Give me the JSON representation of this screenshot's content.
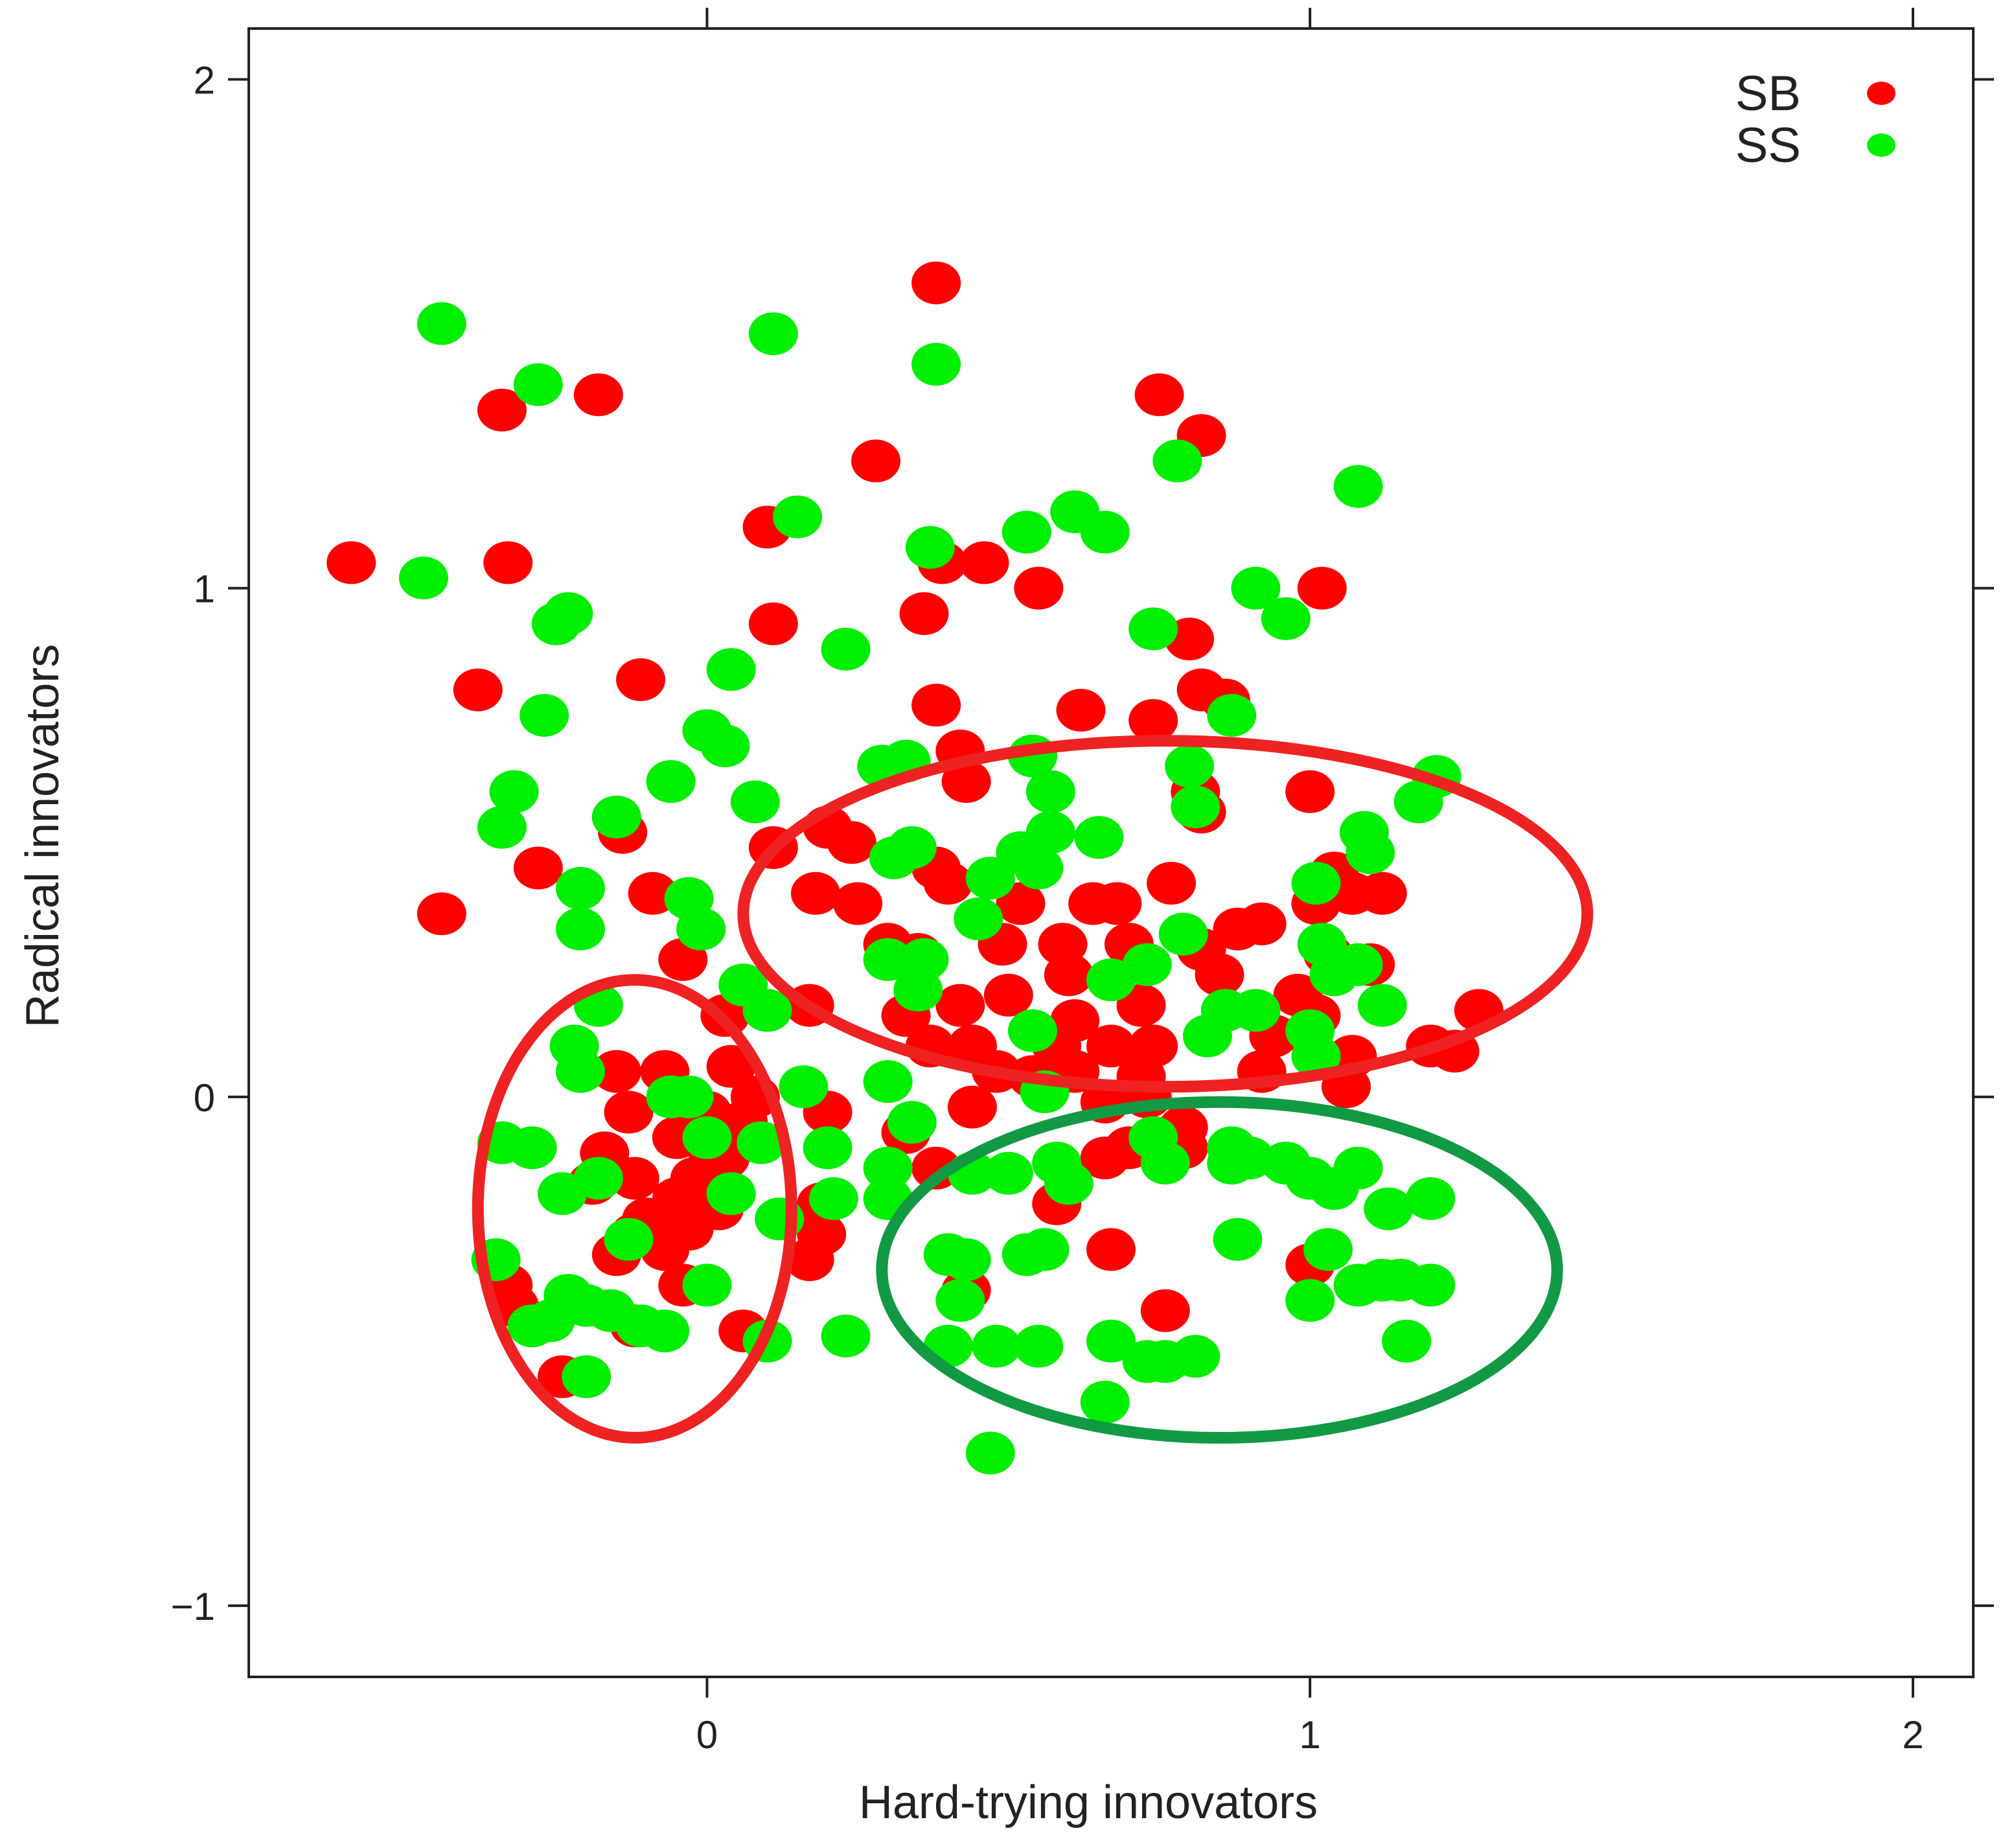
{
  "chart_data": {
    "type": "scatter",
    "xlabel": "Hard-trying innovators",
    "ylabel": "Radical innovators",
    "xlim": [
      -0.76,
      2.1
    ],
    "ylim": [
      -1.14,
      2.1
    ],
    "x_ticks": [
      0,
      1,
      2
    ],
    "x_tick_labels": [
      "0",
      "1",
      "2"
    ],
    "y_ticks": [
      -1,
      0,
      1,
      2
    ],
    "y_tick_labels": [
      "−1",
      "0",
      "1",
      "2"
    ],
    "grid": false,
    "legend_position": "top-right",
    "series": [
      {
        "name": "SB",
        "color": "#ff0000",
        "points": [
          [
            0.38,
            1.6
          ],
          [
            -0.18,
            1.38
          ],
          [
            -0.34,
            1.35
          ],
          [
            0.28,
            1.25
          ],
          [
            0.75,
            1.38
          ],
          [
            0.82,
            1.3
          ],
          [
            -0.59,
            1.05
          ],
          [
            -0.33,
            1.05
          ],
          [
            0.1,
            1.12
          ],
          [
            0.46,
            1.05
          ],
          [
            0.39,
            1.05
          ],
          [
            0.55,
            1.0
          ],
          [
            1.02,
            1.0
          ],
          [
            0.11,
            0.93
          ],
          [
            0.36,
            0.95
          ],
          [
            0.8,
            0.9
          ],
          [
            -0.38,
            0.8
          ],
          [
            -0.11,
            0.82
          ],
          [
            0.38,
            0.77
          ],
          [
            0.62,
            0.76
          ],
          [
            0.74,
            0.74
          ],
          [
            0.82,
            0.8
          ],
          [
            0.86,
            0.78
          ],
          [
            0.42,
            0.68
          ],
          [
            0.43,
            0.62
          ],
          [
            1.0,
            0.6
          ],
          [
            0.81,
            0.6
          ],
          [
            0.82,
            0.56
          ],
          [
            -0.15,
            0.55
          ],
          [
            -0.14,
            0.52
          ],
          [
            0.11,
            0.49
          ],
          [
            0.2,
            0.53
          ],
          [
            0.24,
            0.5
          ],
          [
            -0.28,
            0.45
          ],
          [
            -0.09,
            0.4
          ],
          [
            -0.44,
            0.36
          ],
          [
            0.18,
            0.4
          ],
          [
            0.25,
            0.38
          ],
          [
            0.38,
            0.45
          ],
          [
            0.4,
            0.42
          ],
          [
            0.52,
            0.38
          ],
          [
            0.64,
            0.38
          ],
          [
            0.68,
            0.38
          ],
          [
            0.77,
            0.42
          ],
          [
            0.88,
            0.33
          ],
          [
            0.92,
            0.34
          ],
          [
            1.01,
            0.38
          ],
          [
            1.07,
            0.4
          ],
          [
            1.12,
            0.4
          ],
          [
            1.04,
            0.44
          ],
          [
            0.3,
            0.3
          ],
          [
            0.35,
            0.28
          ],
          [
            0.49,
            0.3
          ],
          [
            0.59,
            0.3
          ],
          [
            0.7,
            0.3
          ],
          [
            0.82,
            0.29
          ],
          [
            0.6,
            0.24
          ],
          [
            0.85,
            0.24
          ],
          [
            1.03,
            0.28
          ],
          [
            1.1,
            0.26
          ],
          [
            -0.04,
            0.27
          ],
          [
            0.17,
            0.18
          ],
          [
            0.33,
            0.16
          ],
          [
            0.42,
            0.18
          ],
          [
            0.5,
            0.2
          ],
          [
            0.61,
            0.15
          ],
          [
            0.72,
            0.18
          ],
          [
            0.98,
            0.2
          ],
          [
            1.01,
            0.16
          ],
          [
            0.37,
            0.1
          ],
          [
            0.44,
            0.1
          ],
          [
            0.58,
            0.1
          ],
          [
            0.67,
            0.1
          ],
          [
            0.74,
            0.1
          ],
          [
            0.94,
            0.12
          ],
          [
            1.07,
            0.08
          ],
          [
            1.2,
            0.1
          ],
          [
            1.28,
            0.17
          ],
          [
            1.24,
            0.09
          ],
          [
            0.03,
            0.16
          ],
          [
            0.48,
            0.05
          ],
          [
            0.61,
            0.05
          ],
          [
            0.72,
            0.04
          ],
          [
            0.92,
            0.05
          ],
          [
            0.54,
            0.04
          ],
          [
            1.06,
            0.02
          ],
          [
            -0.15,
            0.05
          ],
          [
            -0.07,
            0.05
          ],
          [
            0.04,
            0.06
          ],
          [
            0.08,
            0.0
          ],
          [
            -0.13,
            -0.03
          ],
          [
            0.0,
            -0.03
          ],
          [
            -0.01,
            -0.06
          ],
          [
            0.06,
            -0.05
          ],
          [
            0.2,
            -0.03
          ],
          [
            0.33,
            -0.07
          ],
          [
            0.44,
            -0.02
          ],
          [
            0.66,
            -0.01
          ],
          [
            0.73,
            0.0
          ],
          [
            0.79,
            -0.06
          ],
          [
            -0.17,
            -0.11
          ],
          [
            -0.05,
            -0.08
          ],
          [
            0.01,
            -0.11
          ],
          [
            -0.19,
            -0.17
          ],
          [
            -0.12,
            -0.16
          ],
          [
            -0.02,
            -0.16
          ],
          [
            0.03,
            -0.12
          ],
          [
            0.7,
            -0.1
          ],
          [
            0.79,
            -0.1
          ],
          [
            0.66,
            -0.12
          ],
          [
            0.38,
            -0.14
          ],
          [
            -0.05,
            -0.2
          ],
          [
            -0.1,
            -0.24
          ],
          [
            0.02,
            -0.22
          ],
          [
            -0.03,
            -0.26
          ],
          [
            -0.12,
            -0.27
          ],
          [
            0.19,
            -0.21
          ],
          [
            0.58,
            -0.21
          ],
          [
            0.19,
            -0.27
          ],
          [
            -0.15,
            -0.31
          ],
          [
            -0.07,
            -0.3
          ],
          [
            0.17,
            -0.32
          ],
          [
            0.67,
            -0.3
          ],
          [
            1.0,
            -0.33
          ],
          [
            -0.33,
            -0.37
          ],
          [
            -0.04,
            -0.37
          ],
          [
            0.43,
            -0.38
          ],
          [
            0.76,
            -0.42
          ],
          [
            -0.32,
            -0.41
          ],
          [
            -0.12,
            -0.45
          ],
          [
            0.06,
            -0.46
          ],
          [
            -0.24,
            -0.55
          ]
        ]
      },
      {
        "name": "SS",
        "color": "#00ee00",
        "points": [
          [
            -0.44,
            1.52
          ],
          [
            0.11,
            1.5
          ],
          [
            0.38,
            1.44
          ],
          [
            -0.28,
            1.4
          ],
          [
            0.78,
            1.25
          ],
          [
            1.08,
            1.2
          ],
          [
            0.15,
            1.14
          ],
          [
            0.61,
            1.15
          ],
          [
            0.66,
            1.11
          ],
          [
            0.53,
            1.11
          ],
          [
            0.37,
            1.08
          ],
          [
            -0.47,
            1.02
          ],
          [
            0.91,
            1.0
          ],
          [
            0.96,
            0.94
          ],
          [
            -0.23,
            0.95
          ],
          [
            -0.25,
            0.93
          ],
          [
            0.23,
            0.88
          ],
          [
            0.74,
            0.92
          ],
          [
            0.04,
            0.84
          ],
          [
            -0.27,
            0.75
          ],
          [
            0.87,
            0.75
          ],
          [
            0.0,
            0.72
          ],
          [
            0.03,
            0.69
          ],
          [
            0.29,
            0.65
          ],
          [
            0.33,
            0.66
          ],
          [
            0.54,
            0.67
          ],
          [
            -0.06,
            0.62
          ],
          [
            -0.32,
            0.6
          ],
          [
            0.8,
            0.65
          ],
          [
            1.21,
            0.63
          ],
          [
            0.57,
            0.6
          ],
          [
            0.08,
            0.58
          ],
          [
            0.81,
            0.57
          ],
          [
            1.18,
            0.58
          ],
          [
            -0.34,
            0.53
          ],
          [
            -0.15,
            0.55
          ],
          [
            0.57,
            0.52
          ],
          [
            0.65,
            0.51
          ],
          [
            1.09,
            0.52
          ],
          [
            1.1,
            0.48
          ],
          [
            0.52,
            0.48
          ],
          [
            0.31,
            0.47
          ],
          [
            0.34,
            0.49
          ],
          [
            0.55,
            0.45
          ],
          [
            0.47,
            0.43
          ],
          [
            -0.21,
            0.41
          ],
          [
            -0.03,
            0.39
          ],
          [
            1.01,
            0.42
          ],
          [
            -0.21,
            0.33
          ],
          [
            -0.01,
            0.33
          ],
          [
            0.45,
            0.35
          ],
          [
            0.79,
            0.32
          ],
          [
            0.3,
            0.27
          ],
          [
            0.36,
            0.27
          ],
          [
            1.02,
            0.3
          ],
          [
            1.04,
            0.24
          ],
          [
            1.08,
            0.26
          ],
          [
            0.73,
            0.26
          ],
          [
            0.67,
            0.23
          ],
          [
            0.35,
            0.21
          ],
          [
            0.06,
            0.22
          ],
          [
            0.1,
            0.17
          ],
          [
            -0.18,
            0.18
          ],
          [
            0.86,
            0.17
          ],
          [
            0.91,
            0.17
          ],
          [
            1.12,
            0.18
          ],
          [
            0.54,
            0.13
          ],
          [
            0.83,
            0.12
          ],
          [
            1.0,
            0.13
          ],
          [
            1.01,
            0.08
          ],
          [
            -0.22,
            0.1
          ],
          [
            -0.21,
            0.05
          ],
          [
            0.3,
            0.03
          ],
          [
            0.16,
            0.02
          ],
          [
            0.56,
            0.01
          ],
          [
            -0.03,
            0.0
          ],
          [
            -0.06,
            0.0
          ],
          [
            0.34,
            -0.05
          ],
          [
            0.0,
            -0.08
          ],
          [
            0.09,
            -0.09
          ],
          [
            0.2,
            -0.1
          ],
          [
            -0.34,
            -0.09
          ],
          [
            -0.29,
            -0.1
          ],
          [
            0.74,
            -0.08
          ],
          [
            0.87,
            -0.1
          ],
          [
            0.3,
            -0.14
          ],
          [
            0.58,
            -0.13
          ],
          [
            0.44,
            -0.15
          ],
          [
            0.5,
            -0.15
          ],
          [
            0.76,
            -0.13
          ],
          [
            0.96,
            -0.13
          ],
          [
            0.9,
            -0.12
          ],
          [
            1.0,
            -0.16
          ],
          [
            1.04,
            -0.18
          ],
          [
            1.08,
            -0.14
          ],
          [
            -0.18,
            -0.16
          ],
          [
            -0.24,
            -0.19
          ],
          [
            0.04,
            -0.19
          ],
          [
            0.3,
            -0.2
          ],
          [
            0.21,
            -0.2
          ],
          [
            0.6,
            -0.17
          ],
          [
            0.87,
            -0.13
          ],
          [
            1.2,
            -0.2
          ],
          [
            1.13,
            -0.22
          ],
          [
            0.12,
            -0.24
          ],
          [
            -0.13,
            -0.28
          ],
          [
            0.4,
            -0.31
          ],
          [
            0.43,
            -0.32
          ],
          [
            0.56,
            -0.3
          ],
          [
            0.53,
            -0.31
          ],
          [
            0.88,
            -0.28
          ],
          [
            1.03,
            -0.3
          ],
          [
            1.08,
            -0.37
          ],
          [
            1.12,
            -0.36
          ],
          [
            1.15,
            -0.36
          ],
          [
            1.2,
            -0.37
          ],
          [
            -0.35,
            -0.32
          ],
          [
            -0.23,
            -0.39
          ],
          [
            -0.2,
            -0.41
          ],
          [
            -0.16,
            -0.42
          ],
          [
            -0.11,
            -0.45
          ],
          [
            -0.07,
            -0.46
          ],
          [
            -0.26,
            -0.44
          ],
          [
            -0.29,
            -0.45
          ],
          [
            0.0,
            -0.37
          ],
          [
            1.0,
            -0.4
          ],
          [
            0.42,
            -0.4
          ],
          [
            0.23,
            -0.47
          ],
          [
            0.1,
            -0.48
          ],
          [
            0.48,
            -0.49
          ],
          [
            0.55,
            -0.49
          ],
          [
            0.4,
            -0.49
          ],
          [
            0.67,
            -0.48
          ],
          [
            1.16,
            -0.48
          ],
          [
            0.73,
            -0.52
          ],
          [
            0.76,
            -0.52
          ],
          [
            0.81,
            -0.51
          ],
          [
            -0.2,
            -0.55
          ],
          [
            0.66,
            -0.6
          ],
          [
            0.47,
            -0.7
          ]
        ]
      }
    ],
    "annotations": [
      {
        "shape": "ellipse",
        "color": "#ee2222",
        "center": [
          0.76,
          0.36
        ],
        "radii_data_units": [
          0.7,
          0.34
        ]
      },
      {
        "shape": "ellipse",
        "color": "#ee2222",
        "center": [
          -0.12,
          -0.22
        ],
        "radii_data_units": [
          0.26,
          0.45
        ]
      },
      {
        "shape": "ellipse",
        "color": "#119944",
        "center": [
          0.85,
          -0.34
        ],
        "radii_data_units": [
          0.56,
          0.33
        ]
      }
    ]
  }
}
